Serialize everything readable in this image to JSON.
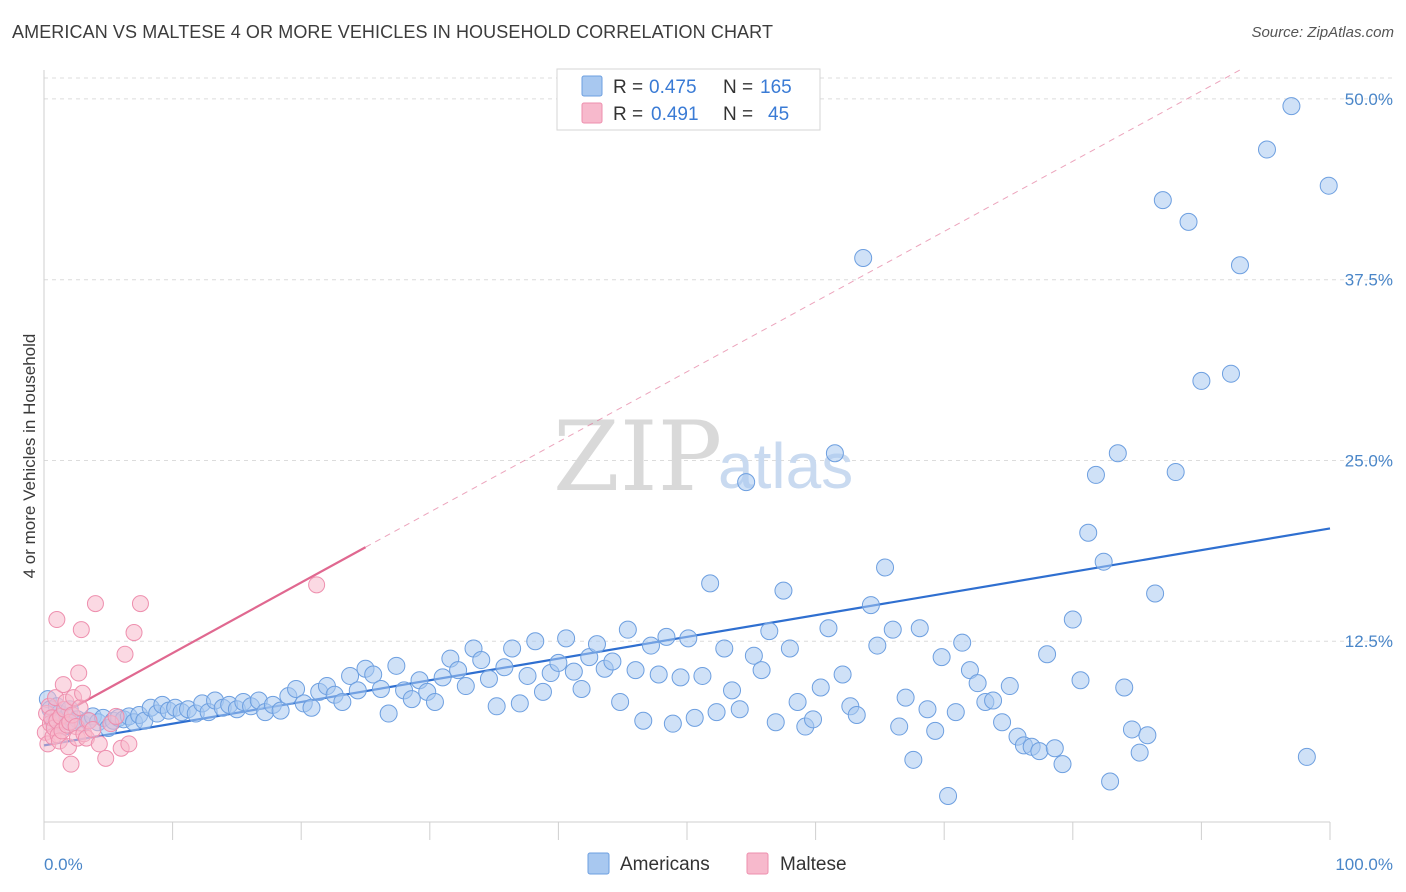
{
  "title": "AMERICAN VS MALTESE 4 OR MORE VEHICLES IN HOUSEHOLD CORRELATION CHART",
  "source": "Source: ZipAtlas.com",
  "watermark": {
    "zip": "ZIP",
    "atlas": "atlas"
  },
  "colors": {
    "americans_fill": "#a8c8f0",
    "americans_stroke": "#6d9fe0",
    "americans_line": "#2f6fd0",
    "maltese_fill": "#f7b9cc",
    "maltese_stroke": "#ee8fae",
    "maltese_line": "#e06890",
    "grid": "#dcdcdc",
    "tick_text": "#4a86c8"
  },
  "legend": {
    "rows": [
      {
        "r_label": "R =",
        "r_value": "0.475",
        "n_label": "N =",
        "n_value": "165"
      },
      {
        "r_label": "R =",
        "r_value": "0.491",
        "n_label": "N =",
        "n_value": "45"
      }
    ]
  },
  "bottom_legend": {
    "americans": "Americans",
    "maltese": "Maltese"
  },
  "chart_data": {
    "type": "scatter",
    "title": "AMERICAN VS MALTESE 4 OR MORE VEHICLES IN HOUSEHOLD CORRELATION CHART",
    "xlabel": "",
    "ylabel": "4 or more Vehicles in Household",
    "xlim": [
      0,
      100
    ],
    "ylim": [
      0,
      52
    ],
    "x_tick_labels": [
      "0.0%",
      "100.0%"
    ],
    "y_ticks": [
      12.5,
      25.0,
      37.5,
      50.0
    ],
    "y_tick_labels": [
      "12.5%",
      "25.0%",
      "37.5%",
      "50.0%"
    ],
    "grid": true,
    "series": [
      {
        "name": "Americans",
        "R": 0.475,
        "N": 165,
        "trend": {
          "x0": 0,
          "y0": 5.3,
          "x1": 100,
          "y1": 20.3
        },
        "points": [
          [
            0.3,
            8.5
          ],
          [
            0.5,
            7.8
          ],
          [
            0.7,
            7.2
          ],
          [
            0.8,
            6.8
          ],
          [
            1.0,
            8.0
          ],
          [
            1.2,
            7.5
          ],
          [
            1.4,
            7.0
          ],
          [
            1.6,
            6.6
          ],
          [
            1.8,
            7.3
          ],
          [
            2.0,
            7.8
          ],
          [
            2.3,
            6.9
          ],
          [
            2.6,
            7.1
          ],
          [
            3.0,
            6.8
          ],
          [
            3.4,
            7.0
          ],
          [
            3.8,
            7.3
          ],
          [
            4.2,
            6.9
          ],
          [
            4.6,
            7.2
          ],
          [
            5.0,
            6.5
          ],
          [
            5.4,
            7.0
          ],
          [
            5.8,
            7.2
          ],
          [
            6.2,
            7.1
          ],
          [
            6.6,
            7.3
          ],
          [
            7.0,
            6.9
          ],
          [
            7.4,
            7.4
          ],
          [
            7.8,
            7.0
          ],
          [
            8.3,
            7.9
          ],
          [
            8.8,
            7.5
          ],
          [
            9.2,
            8.1
          ],
          [
            9.7,
            7.7
          ],
          [
            10.2,
            7.9
          ],
          [
            10.7,
            7.6
          ],
          [
            11.2,
            7.8
          ],
          [
            11.8,
            7.5
          ],
          [
            12.3,
            8.2
          ],
          [
            12.8,
            7.6
          ],
          [
            13.3,
            8.4
          ],
          [
            13.9,
            7.9
          ],
          [
            14.4,
            8.1
          ],
          [
            15.0,
            7.8
          ],
          [
            15.5,
            8.3
          ],
          [
            16.1,
            8.0
          ],
          [
            16.7,
            8.4
          ],
          [
            17.2,
            7.6
          ],
          [
            17.8,
            8.1
          ],
          [
            18.4,
            7.7
          ],
          [
            19.0,
            8.7
          ],
          [
            19.6,
            9.2
          ],
          [
            20.2,
            8.2
          ],
          [
            20.8,
            7.9
          ],
          [
            21.4,
            9.0
          ],
          [
            22.0,
            9.4
          ],
          [
            22.6,
            8.8
          ],
          [
            23.2,
            8.3
          ],
          [
            23.8,
            10.1
          ],
          [
            24.4,
            9.1
          ],
          [
            25.0,
            10.6
          ],
          [
            25.6,
            10.2
          ],
          [
            26.2,
            9.2
          ],
          [
            26.8,
            7.5
          ],
          [
            27.4,
            10.8
          ],
          [
            28.0,
            9.1
          ],
          [
            28.6,
            8.5
          ],
          [
            29.2,
            9.8
          ],
          [
            29.8,
            9.0
          ],
          [
            30.4,
            8.3
          ],
          [
            31.0,
            10.0
          ],
          [
            31.6,
            11.3
          ],
          [
            32.2,
            10.5
          ],
          [
            32.8,
            9.4
          ],
          [
            33.4,
            12.0
          ],
          [
            34.0,
            11.2
          ],
          [
            34.6,
            9.9
          ],
          [
            35.2,
            8.0
          ],
          [
            35.8,
            10.7
          ],
          [
            36.4,
            12.0
          ],
          [
            37.0,
            8.2
          ],
          [
            37.6,
            10.1
          ],
          [
            38.2,
            12.5
          ],
          [
            38.8,
            9.0
          ],
          [
            39.4,
            10.3
          ],
          [
            40.0,
            11.0
          ],
          [
            40.6,
            12.7
          ],
          [
            41.2,
            10.4
          ],
          [
            41.8,
            9.2
          ],
          [
            42.4,
            11.4
          ],
          [
            43.0,
            12.3
          ],
          [
            43.6,
            10.6
          ],
          [
            44.2,
            11.1
          ],
          [
            44.8,
            8.3
          ],
          [
            45.4,
            13.3
          ],
          [
            46.0,
            10.5
          ],
          [
            46.6,
            7.0
          ],
          [
            47.2,
            12.2
          ],
          [
            47.8,
            10.2
          ],
          [
            48.4,
            12.8
          ],
          [
            48.9,
            6.8
          ],
          [
            49.5,
            10.0
          ],
          [
            50.1,
            12.7
          ],
          [
            50.6,
            7.2
          ],
          [
            51.2,
            10.1
          ],
          [
            51.8,
            16.5
          ],
          [
            52.3,
            7.6
          ],
          [
            52.9,
            12.0
          ],
          [
            53.5,
            9.1
          ],
          [
            54.1,
            7.8
          ],
          [
            54.6,
            23.5
          ],
          [
            55.2,
            11.5
          ],
          [
            55.8,
            10.5
          ],
          [
            56.4,
            13.2
          ],
          [
            56.9,
            6.9
          ],
          [
            57.5,
            16.0
          ],
          [
            58.0,
            12.0
          ],
          [
            58.6,
            8.3
          ],
          [
            59.2,
            6.6
          ],
          [
            59.8,
            7.1
          ],
          [
            60.4,
            9.3
          ],
          [
            61.0,
            13.4
          ],
          [
            61.5,
            25.5
          ],
          [
            62.1,
            10.2
          ],
          [
            62.7,
            8.0
          ],
          [
            63.2,
            7.4
          ],
          [
            63.7,
            39.0
          ],
          [
            64.3,
            15.0
          ],
          [
            64.8,
            12.2
          ],
          [
            65.4,
            17.6
          ],
          [
            66.0,
            13.3
          ],
          [
            66.5,
            6.6
          ],
          [
            67.0,
            8.6
          ],
          [
            67.6,
            4.3
          ],
          [
            68.1,
            13.4
          ],
          [
            68.7,
            7.8
          ],
          [
            69.3,
            6.3
          ],
          [
            69.8,
            11.4
          ],
          [
            70.3,
            1.8
          ],
          [
            70.9,
            7.6
          ],
          [
            71.4,
            12.4
          ],
          [
            72.0,
            10.5
          ],
          [
            72.6,
            9.6
          ],
          [
            73.2,
            8.3
          ],
          [
            73.8,
            8.4
          ],
          [
            74.5,
            6.9
          ],
          [
            75.1,
            9.4
          ],
          [
            75.7,
            5.9
          ],
          [
            76.2,
            5.3
          ],
          [
            76.8,
            5.2
          ],
          [
            77.4,
            4.9
          ],
          [
            78.0,
            11.6
          ],
          [
            78.6,
            5.1
          ],
          [
            79.2,
            4.0
          ],
          [
            80.0,
            14.0
          ],
          [
            80.6,
            9.8
          ],
          [
            81.2,
            20.0
          ],
          [
            81.8,
            24.0
          ],
          [
            82.4,
            18.0
          ],
          [
            82.9,
            2.8
          ],
          [
            83.5,
            25.5
          ],
          [
            84.0,
            9.3
          ],
          [
            84.6,
            6.4
          ],
          [
            85.2,
            4.8
          ],
          [
            85.8,
            6.0
          ],
          [
            86.4,
            15.8
          ],
          [
            87.0,
            43.0
          ],
          [
            88.0,
            24.2
          ],
          [
            89.0,
            41.5
          ],
          [
            90.0,
            30.5
          ],
          [
            92.3,
            31.0
          ],
          [
            93.0,
            38.5
          ],
          [
            95.1,
            46.5
          ],
          [
            97.0,
            49.5
          ],
          [
            98.2,
            4.5
          ],
          [
            99.9,
            44.0
          ]
        ]
      },
      {
        "name": "Maltese",
        "R": 0.491,
        "N": 45,
        "trend": {
          "x0": 0,
          "y0": 6.8,
          "x1": 25,
          "y1": 19.0,
          "x_ext": 93,
          "y_ext": 52
        },
        "points": [
          [
            0.1,
            6.2
          ],
          [
            0.2,
            7.5
          ],
          [
            0.3,
            5.4
          ],
          [
            0.4,
            8.0
          ],
          [
            0.5,
            6.8
          ],
          [
            0.6,
            7.2
          ],
          [
            0.7,
            5.9
          ],
          [
            0.8,
            6.5
          ],
          [
            0.9,
            8.6
          ],
          [
            1.0,
            7.0
          ],
          [
            1.1,
            6.0
          ],
          [
            1.2,
            5.6
          ],
          [
            1.3,
            7.3
          ],
          [
            1.4,
            6.3
          ],
          [
            1.5,
            9.5
          ],
          [
            1.6,
            7.8
          ],
          [
            1.7,
            8.3
          ],
          [
            1.8,
            6.7
          ],
          [
            1.9,
            5.2
          ],
          [
            2.0,
            6.9
          ],
          [
            2.1,
            4.0
          ],
          [
            2.2,
            7.4
          ],
          [
            2.3,
            8.6
          ],
          [
            2.5,
            6.6
          ],
          [
            2.6,
            5.8
          ],
          [
            2.7,
            10.3
          ],
          [
            2.8,
            7.9
          ],
          [
            2.9,
            13.3
          ],
          [
            3.0,
            8.9
          ],
          [
            3.1,
            6.1
          ],
          [
            3.3,
            5.8
          ],
          [
            3.5,
            7.0
          ],
          [
            3.8,
            6.4
          ],
          [
            4.0,
            15.1
          ],
          [
            4.3,
            5.4
          ],
          [
            4.8,
            4.4
          ],
          [
            5.2,
            6.8
          ],
          [
            5.6,
            7.3
          ],
          [
            6.0,
            5.1
          ],
          [
            6.3,
            11.6
          ],
          [
            6.6,
            5.4
          ],
          [
            7.0,
            13.1
          ],
          [
            7.5,
            15.1
          ],
          [
            1.0,
            14.0
          ],
          [
            21.2,
            16.4
          ]
        ]
      }
    ]
  }
}
